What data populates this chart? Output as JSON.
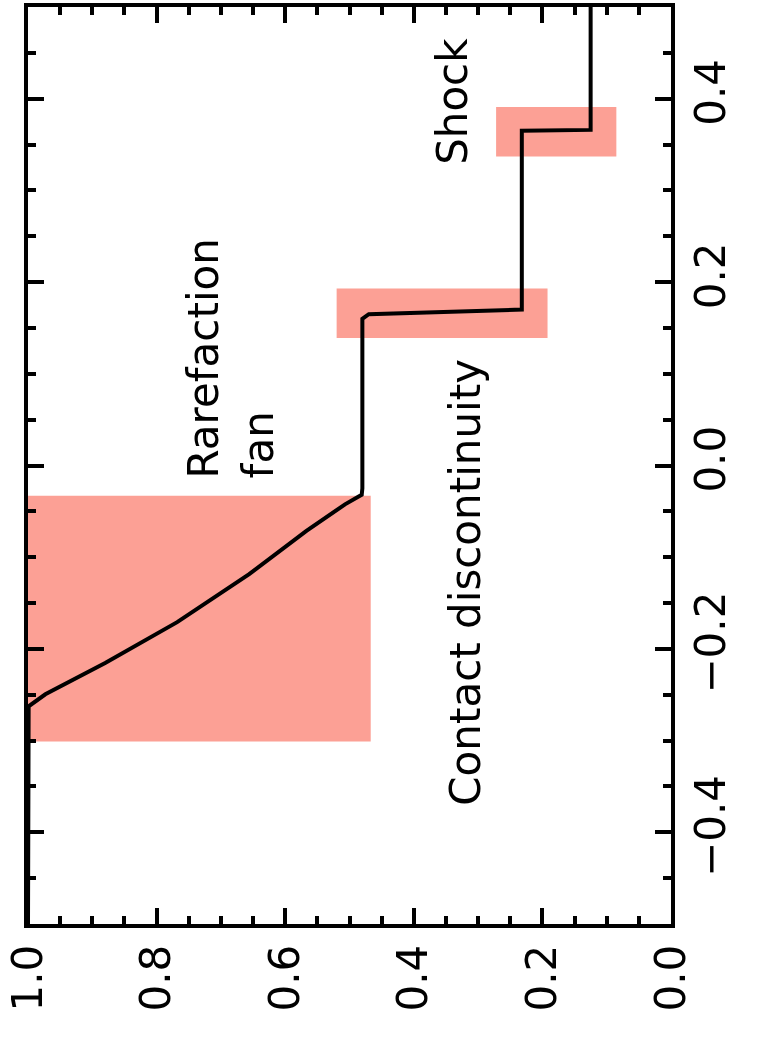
{
  "chart_data": {
    "type": "line",
    "orientation": "horizontal",
    "x": [
      -0.5,
      -0.2626,
      -0.2495,
      -0.2153,
      -0.1708,
      -0.1184,
      -0.0712,
      -0.0424,
      -0.032,
      -0.025,
      0.16,
      0.165,
      0.17,
      0.365,
      0.366,
      0.5
    ],
    "series": [
      {
        "color": "#000000",
        "values": [
          1.0,
          0.999,
          0.973,
          0.88,
          0.768,
          0.656,
          0.567,
          0.507,
          0.481,
          0.48,
          0.48,
          0.47,
          0.232,
          0.232,
          0.125,
          0.125
        ]
      }
    ],
    "xlim": [
      1.0,
      0.0
    ],
    "xticks": [
      {
        "value": 1.0,
        "label": "1.0"
      },
      {
        "value": 0.95,
        "label": null
      },
      {
        "value": 0.9,
        "label": null
      },
      {
        "value": 0.85,
        "label": null
      },
      {
        "value": 0.8,
        "label": "0.8"
      },
      {
        "value": 0.75,
        "label": null
      },
      {
        "value": 0.7,
        "label": null
      },
      {
        "value": 0.65,
        "label": null
      },
      {
        "value": 0.6,
        "label": "0.6"
      },
      {
        "value": 0.55,
        "label": null
      },
      {
        "value": 0.5,
        "label": null
      },
      {
        "value": 0.45,
        "label": null
      },
      {
        "value": 0.4,
        "label": "0.4"
      },
      {
        "value": 0.35,
        "label": null
      },
      {
        "value": 0.3,
        "label": null
      },
      {
        "value": 0.25,
        "label": null
      },
      {
        "value": 0.2,
        "label": "0.2"
      },
      {
        "value": 0.15,
        "label": null
      },
      {
        "value": 0.1,
        "label": null
      },
      {
        "value": 0.05,
        "label": null
      },
      {
        "value": 0.0,
        "label": "0.0"
      }
    ],
    "ylim": [
      -0.5,
      0.5
    ],
    "yticks": [
      {
        "value": -0.45,
        "label": null
      },
      {
        "value": -0.4,
        "label": "−0.4"
      },
      {
        "value": -0.35,
        "label": null
      },
      {
        "value": -0.3,
        "label": null
      },
      {
        "value": -0.25,
        "label": null
      },
      {
        "value": -0.2,
        "label": "−0.2"
      },
      {
        "value": -0.15,
        "label": null
      },
      {
        "value": -0.1,
        "label": null
      },
      {
        "value": -0.05,
        "label": null
      },
      {
        "value": 0.0,
        "label": "0.0"
      },
      {
        "value": 0.05,
        "label": null
      },
      {
        "value": 0.1,
        "label": null
      },
      {
        "value": 0.15,
        "label": null
      },
      {
        "value": 0.2,
        "label": "0.2"
      },
      {
        "value": 0.25,
        "label": null
      },
      {
        "value": 0.3,
        "label": null
      },
      {
        "value": 0.35,
        "label": null
      },
      {
        "value": 0.4,
        "label": "0.4"
      },
      {
        "value": 0.45,
        "label": null
      }
    ],
    "bands": [
      {
        "axis": "y",
        "from": -0.301,
        "to": -0.033,
        "color": "#fa614e"
      },
      {
        "axis": "y",
        "from": 0.139,
        "to": 0.193,
        "color": "#fa614e"
      },
      {
        "axis": "y",
        "from": 0.337,
        "to": 0.391,
        "color": "#fa614e"
      }
    ],
    "annotations": [
      "Rarefaction\nfan",
      "Contact discontinuity",
      "Shock"
    ],
    "grid": false,
    "marker": "none",
    "line_style": "solid"
  }
}
